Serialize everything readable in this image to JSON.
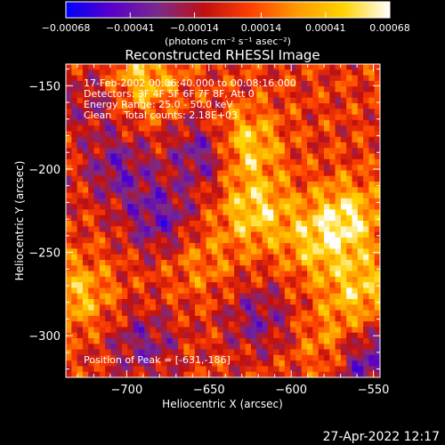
{
  "chart_data": {
    "type": "heatmap",
    "title": "Reconstructed RHESSI Image",
    "xlabel": "Heliocentric X (arcsec)",
    "ylabel": "Heliocentric Y (arcsec)",
    "xlim": [
      -737,
      -546
    ],
    "ylim": [
      -325,
      -137
    ],
    "x_ticks": [
      -700,
      -650,
      -600,
      -550
    ],
    "y_ticks": [
      -300,
      -250,
      -200,
      -150
    ],
    "x_tick_labels": [
      "−700",
      "−650",
      "−600",
      "−550"
    ],
    "y_tick_labels": [
      "−300",
      "−250",
      "−200",
      "−150"
    ],
    "colorbar": {
      "range": [
        -0.00068,
        0.00068
      ],
      "ticks": [
        -0.00068,
        -0.00041,
        -0.00014,
        0.00014,
        0.00041,
        0.00068
      ],
      "tick_labels": [
        "−0.00068",
        "−0.00041",
        "−0.00014",
        "0.00014",
        "0.00041",
        "0.00068"
      ],
      "units_text": "(photons cm⁻² s⁻¹ asec⁻²)",
      "colors": [
        "#0000ff",
        "#5a00c8",
        "#7a2a8a",
        "#c01010",
        "#ff4000",
        "#ff9a00",
        "#ffd400",
        "#ffffff"
      ]
    },
    "annotations": [
      "17-Feb-2002 00:06:40.000 to 00:08:16.000",
      "Detectors: 3F 4F 5F 6F 7F 8F, Att 0",
      "Energy Range: 25.0 - 50.0 keV",
      "Clean    Total counts: 2.18E+03"
    ],
    "peak_label": "Position of Peak = [-631,-186]",
    "peak": [
      -631,
      -186
    ],
    "bright_regions": [
      {
        "x": -631,
        "y": -186,
        "level": 1.0
      },
      {
        "x": -622,
        "y": -225,
        "level": 0.8
      },
      {
        "x": -566,
        "y": -229,
        "level": 0.85
      },
      {
        "x": -558,
        "y": -272,
        "level": 0.7
      },
      {
        "x": -690,
        "y": -147,
        "level": 0.7
      },
      {
        "x": -730,
        "y": -275,
        "level": 0.65
      },
      {
        "x": -585,
        "y": -245,
        "level": 0.6
      },
      {
        "x": -575,
        "y": -305,
        "level": 0.5
      },
      {
        "x": -655,
        "y": -255,
        "level": 0.35
      }
    ],
    "dim_regions": [
      {
        "x": -650,
        "y": -190,
        "level": -0.9
      },
      {
        "x": -680,
        "y": -230,
        "level": -0.7
      },
      {
        "x": -705,
        "y": -200,
        "level": -0.6
      },
      {
        "x": -690,
        "y": -305,
        "level": -0.55
      },
      {
        "x": -620,
        "y": -290,
        "level": -0.55
      },
      {
        "x": -555,
        "y": -315,
        "level": -0.85
      },
      {
        "x": -720,
        "y": -160,
        "level": -0.4
      }
    ]
  },
  "footer": {
    "timestamp": "27-Apr-2022 12:17"
  }
}
